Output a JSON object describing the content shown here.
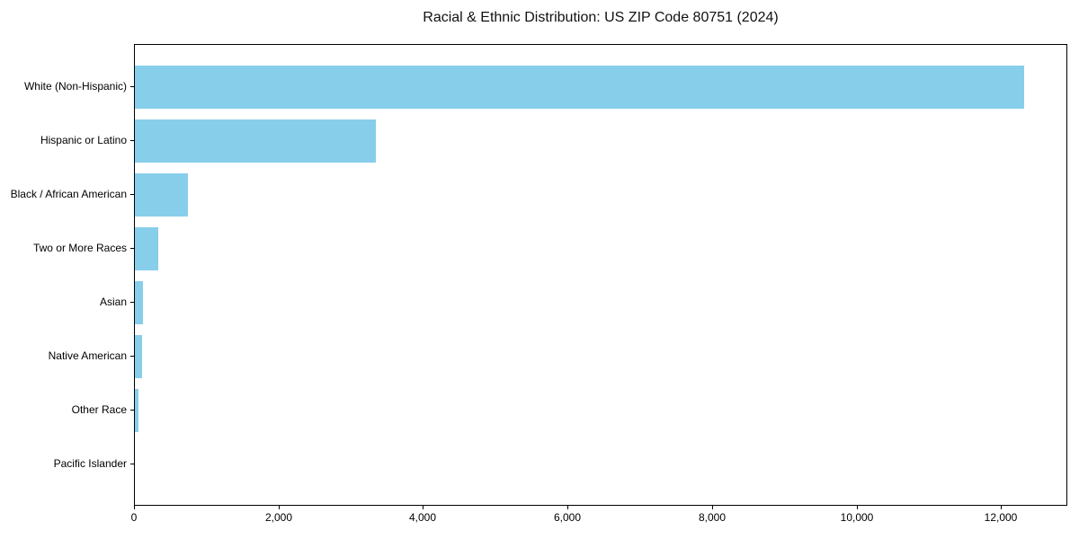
{
  "title": "Racial & Ethnic Distribution: US ZIP Code 80751 (2024)",
  "chart_data": {
    "type": "bar",
    "orientation": "horizontal",
    "title": "Racial & Ethnic Distribution: US ZIP Code 80751 (2024)",
    "categories": [
      "White (Non-Hispanic)",
      "Hispanic or Latino",
      "Black / African American",
      "Two or More Races",
      "Asian",
      "Native American",
      "Other Race",
      "Pacific Islander"
    ],
    "values": [
      12300,
      3340,
      740,
      325,
      110,
      100,
      50,
      0
    ],
    "xlabel": "",
    "ylabel": "",
    "xlim": [
      0,
      12915
    ],
    "x_ticks": [
      0,
      2000,
      4000,
      6000,
      8000,
      10000,
      12000
    ],
    "x_tick_labels": [
      "0",
      "2,000",
      "4,000",
      "6,000",
      "8,000",
      "10,000",
      "12,000"
    ],
    "bar_color": "#87CEEB",
    "background_color": "#FFFFFF",
    "axis_color": "#000000",
    "grid": false,
    "legend": null
  }
}
